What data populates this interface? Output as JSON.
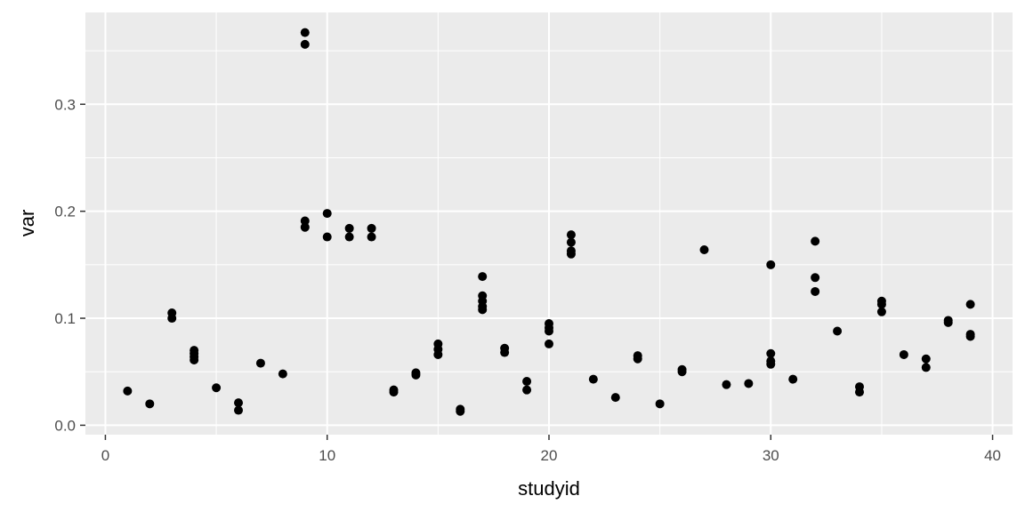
{
  "chart_data": {
    "type": "scatter",
    "title": "",
    "xlabel": "studyid",
    "ylabel": "var",
    "xlim": [
      -0.9,
      40.9
    ],
    "ylim": [
      -0.0088,
      0.3858
    ],
    "x_ticks": [
      0,
      10,
      20,
      30,
      40
    ],
    "x_tick_labels": [
      "0",
      "10",
      "20",
      "30",
      "40"
    ],
    "y_ticks": [
      0.0,
      0.1,
      0.2,
      0.3
    ],
    "y_tick_labels": [
      "0.0",
      "0.1",
      "0.2",
      "0.3"
    ],
    "grid": true,
    "legend": "none",
    "colors": {
      "panel": "#ebebeb",
      "grid": "#ffffff",
      "point": "#000000"
    },
    "points": [
      [
        1,
        0.032
      ],
      [
        2,
        0.02
      ],
      [
        3,
        0.105
      ],
      [
        3,
        0.1
      ],
      [
        4,
        0.07
      ],
      [
        4,
        0.067
      ],
      [
        4,
        0.064
      ],
      [
        4,
        0.061
      ],
      [
        5,
        0.035
      ],
      [
        6,
        0.021
      ],
      [
        6,
        0.014
      ],
      [
        7,
        0.058
      ],
      [
        8,
        0.048
      ],
      [
        9,
        0.367
      ],
      [
        9,
        0.356
      ],
      [
        9,
        0.191
      ],
      [
        9,
        0.185
      ],
      [
        10,
        0.198
      ],
      [
        10,
        0.176
      ],
      [
        11,
        0.184
      ],
      [
        11,
        0.176
      ],
      [
        12,
        0.184
      ],
      [
        12,
        0.176
      ],
      [
        13,
        0.033
      ],
      [
        13,
        0.031
      ],
      [
        14,
        0.049
      ],
      [
        14,
        0.047
      ],
      [
        15,
        0.076
      ],
      [
        15,
        0.071
      ],
      [
        15,
        0.066
      ],
      [
        16,
        0.015
      ],
      [
        16,
        0.013
      ],
      [
        17,
        0.139
      ],
      [
        17,
        0.121
      ],
      [
        17,
        0.116
      ],
      [
        17,
        0.111
      ],
      [
        17,
        0.108
      ],
      [
        18,
        0.072
      ],
      [
        18,
        0.068
      ],
      [
        19,
        0.041
      ],
      [
        19,
        0.033
      ],
      [
        20,
        0.095
      ],
      [
        20,
        0.091
      ],
      [
        20,
        0.088
      ],
      [
        20,
        0.076
      ],
      [
        21,
        0.178
      ],
      [
        21,
        0.171
      ],
      [
        21,
        0.163
      ],
      [
        21,
        0.16
      ],
      [
        22,
        0.043
      ],
      [
        23,
        0.026
      ],
      [
        24,
        0.065
      ],
      [
        24,
        0.062
      ],
      [
        25,
        0.02
      ],
      [
        26,
        0.052
      ],
      [
        26,
        0.05
      ],
      [
        27,
        0.164
      ],
      [
        28,
        0.038
      ],
      [
        29,
        0.039
      ],
      [
        30,
        0.15
      ],
      [
        30,
        0.067
      ],
      [
        30,
        0.06
      ],
      [
        30,
        0.057
      ],
      [
        31,
        0.043
      ],
      [
        32,
        0.172
      ],
      [
        32,
        0.138
      ],
      [
        32,
        0.125
      ],
      [
        33,
        0.088
      ],
      [
        34,
        0.036
      ],
      [
        34,
        0.031
      ],
      [
        35,
        0.116
      ],
      [
        35,
        0.113
      ],
      [
        35,
        0.106
      ],
      [
        36,
        0.066
      ],
      [
        37,
        0.062
      ],
      [
        37,
        0.054
      ],
      [
        38,
        0.098
      ],
      [
        38,
        0.096
      ],
      [
        39,
        0.113
      ],
      [
        39,
        0.085
      ],
      [
        39,
        0.083
      ]
    ]
  }
}
